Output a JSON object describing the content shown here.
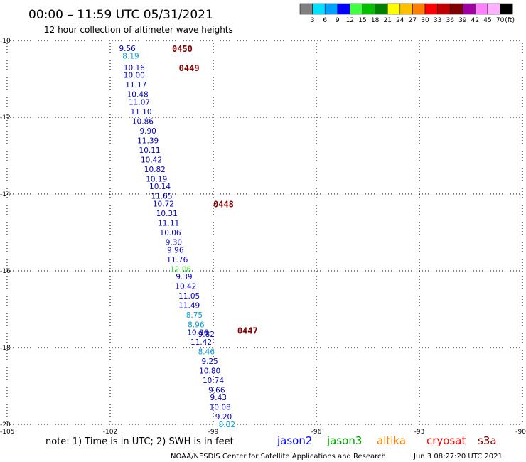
{
  "header": {
    "title": "00:00 – 11:59 UTC 05/31/2021",
    "subtitle": "12 hour collection of altimeter wave heights"
  },
  "colorbar": {
    "colors": [
      "#808080",
      "#00e0ff",
      "#00a0ff",
      "#0000ff",
      "#40ff40",
      "#00c000",
      "#008000",
      "#ffff00",
      "#ffc000",
      "#ff8000",
      "#ff0000",
      "#c00000",
      "#800000",
      "#a000a0",
      "#ff80ff",
      "#ffb0ff",
      "#000000"
    ],
    "labels": [
      "3",
      "6",
      "9",
      "12",
      "15",
      "18",
      "21",
      "24",
      "27",
      "30",
      "33",
      "36",
      "39",
      "42",
      "45",
      "70",
      "(ft)"
    ]
  },
  "axes": {
    "lon_ticks": [
      "-105",
      "-102",
      "-99",
      "-96",
      "-93",
      "-90"
    ],
    "lat_ticks": [
      "-10",
      "-12",
      "-14",
      "-16",
      "-18",
      "-20"
    ]
  },
  "passes": [
    {
      "label": "0450",
      "lon": -100.2,
      "lat": -10.2
    },
    {
      "label": "0449",
      "lon": -100.0,
      "lat": -10.7
    },
    {
      "label": "0448",
      "lon": -99.0,
      "lat": -14.25
    },
    {
      "label": "0447",
      "lon": -98.3,
      "lat": -17.55
    }
  ],
  "chart_data": {
    "type": "scatter",
    "title": "00:00 – 11:59 UTC 05/31/2021",
    "xlim": [
      -105,
      -90
    ],
    "ylim": [
      -20,
      -10
    ],
    "points": [
      {
        "text": "9.56",
        "lon": -101.5,
        "lat": -10.2,
        "color": "#0000c0"
      },
      {
        "text": "8.19",
        "lon": -101.4,
        "lat": -10.4,
        "color": "#00a0e0"
      },
      {
        "text": "10.16",
        "lon": -101.3,
        "lat": -10.7,
        "color": "#0000c0"
      },
      {
        "text": "10.00",
        "lon": -101.3,
        "lat": -10.9,
        "color": "#0000c0"
      },
      {
        "text": "11.17",
        "lon": -101.25,
        "lat": -11.15,
        "color": "#0000c0"
      },
      {
        "text": "10.48",
        "lon": -101.2,
        "lat": -11.4,
        "color": "#0000c0"
      },
      {
        "text": "11.07",
        "lon": -101.15,
        "lat": -11.6,
        "color": "#0000c0"
      },
      {
        "text": "11.10",
        "lon": -101.1,
        "lat": -11.85,
        "color": "#0000c0"
      },
      {
        "text": "10.86",
        "lon": -101.05,
        "lat": -12.1,
        "color": "#0000c0"
      },
      {
        "text": "9.90",
        "lon": -100.9,
        "lat": -12.35,
        "color": "#0000c0"
      },
      {
        "text": "11.39",
        "lon": -100.9,
        "lat": -12.6,
        "color": "#0000c0"
      },
      {
        "text": "10.11",
        "lon": -100.85,
        "lat": -12.85,
        "color": "#0000c0"
      },
      {
        "text": "10.42",
        "lon": -100.8,
        "lat": -13.1,
        "color": "#0000c0"
      },
      {
        "text": "10.82",
        "lon": -100.7,
        "lat": -13.35,
        "color": "#0000c0"
      },
      {
        "text": "10.19",
        "lon": -100.65,
        "lat": -13.6,
        "color": "#0000c0"
      },
      {
        "text": "10.14",
        "lon": -100.55,
        "lat": -13.8,
        "color": "#0000c0"
      },
      {
        "text": "11.65",
        "lon": -100.5,
        "lat": -14.05,
        "color": "#0000c0"
      },
      {
        "text": "10.72",
        "lon": -100.45,
        "lat": -14.25,
        "color": "#0000c0"
      },
      {
        "text": "10.31",
        "lon": -100.35,
        "lat": -14.5,
        "color": "#0000c0"
      },
      {
        "text": "11.11",
        "lon": -100.3,
        "lat": -14.75,
        "color": "#0000c0"
      },
      {
        "text": "10.06",
        "lon": -100.25,
        "lat": -15.0,
        "color": "#0000c0"
      },
      {
        "text": "9.30",
        "lon": -100.15,
        "lat": -15.25,
        "color": "#0000c0"
      },
      {
        "text": "9.96",
        "lon": -100.1,
        "lat": -15.45,
        "color": "#0000c0"
      },
      {
        "text": "11.76",
        "lon": -100.05,
        "lat": -15.7,
        "color": "#0000c0"
      },
      {
        "text": "12.06",
        "lon": -99.95,
        "lat": -15.95,
        "color": "#40e040"
      },
      {
        "text": "9.39",
        "lon": -99.85,
        "lat": -16.15,
        "color": "#0000c0"
      },
      {
        "text": "10.42",
        "lon": -99.8,
        "lat": -16.4,
        "color": "#0000c0"
      },
      {
        "text": "11.05",
        "lon": -99.7,
        "lat": -16.65,
        "color": "#0000c0"
      },
      {
        "text": "11.49",
        "lon": -99.7,
        "lat": -16.9,
        "color": "#0000c0"
      },
      {
        "text": "8.75",
        "lon": -99.55,
        "lat": -17.15,
        "color": "#00a0e0"
      },
      {
        "text": "8.96",
        "lon": -99.5,
        "lat": -17.4,
        "color": "#00a0e0"
      },
      {
        "text": "10.86",
        "lon": -99.45,
        "lat": -17.6,
        "color": "#0000c0"
      },
      {
        "text": "9.82",
        "lon": -99.2,
        "lat": -17.65,
        "color": "#0000c0"
      },
      {
        "text": "11.42",
        "lon": -99.35,
        "lat": -17.85,
        "color": "#0000c0"
      },
      {
        "text": "8.46",
        "lon": -99.2,
        "lat": -18.1,
        "color": "#00a0e0"
      },
      {
        "text": "9.25",
        "lon": -99.1,
        "lat": -18.35,
        "color": "#0000c0"
      },
      {
        "text": "10.80",
        "lon": -99.1,
        "lat": -18.6,
        "color": "#0000c0"
      },
      {
        "text": "10.74",
        "lon": -99.0,
        "lat": -18.85,
        "color": "#0000c0"
      },
      {
        "text": "9.66",
        "lon": -98.9,
        "lat": -19.1,
        "color": "#0000c0"
      },
      {
        "text": "9.43",
        "lon": -98.85,
        "lat": -19.3,
        "color": "#0000c0"
      },
      {
        "text": "10.08",
        "lon": -98.8,
        "lat": -19.55,
        "color": "#0000c0"
      },
      {
        "text": "9.20",
        "lon": -98.7,
        "lat": -19.8,
        "color": "#0000c0"
      },
      {
        "text": "8.82",
        "lon": -98.6,
        "lat": -20.0,
        "color": "#00a0e0"
      }
    ]
  },
  "footer": {
    "note": "note: 1) Time is in UTC; 2) SWH is in feet",
    "satellites": [
      {
        "name": "jason2",
        "color": "#0000ff"
      },
      {
        "name": "jason3",
        "color": "#00a000"
      },
      {
        "name": "altika",
        "color": "#ff8000"
      },
      {
        "name": "cryosat",
        "color": "#ff0000"
      },
      {
        "name": "s3a",
        "color": "#800000"
      }
    ],
    "credit": "NOAA/NESDIS Center for Satellite Applications and Research",
    "timestamp": "Jun  3 08:27:20 UTC 2021"
  }
}
